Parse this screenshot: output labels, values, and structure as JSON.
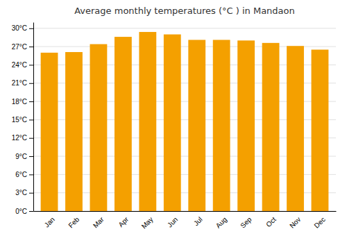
{
  "chart_data": {
    "type": "bar",
    "title": "Average monthly temperatures (°C ) in Mandaon",
    "categories": [
      "Jan",
      "Feb",
      "Mar",
      "Apr",
      "May",
      "Jun",
      "Jul",
      "Aug",
      "Sep",
      "Oct",
      "Nov",
      "Dec"
    ],
    "values": [
      26.0,
      26.1,
      27.4,
      28.6,
      29.4,
      29.0,
      28.1,
      28.1,
      28.0,
      27.6,
      27.1,
      26.5
    ],
    "color": "#F4A000",
    "ylim": [
      0,
      31
    ],
    "yticks": [
      {
        "value": 0,
        "label": "0°C"
      },
      {
        "value": 3,
        "label": "3°C"
      },
      {
        "value": 6,
        "label": "6°C"
      },
      {
        "value": 9,
        "label": "9°C"
      },
      {
        "value": 12,
        "label": "12°C"
      },
      {
        "value": 15,
        "label": "15°C"
      },
      {
        "value": 18,
        "label": "18°C"
      },
      {
        "value": 21,
        "label": "21°C"
      },
      {
        "value": 24,
        "label": "24°C"
      },
      {
        "value": 27,
        "label": "27°C"
      },
      {
        "value": 30,
        "label": "30°C"
      }
    ],
    "grid": true
  }
}
